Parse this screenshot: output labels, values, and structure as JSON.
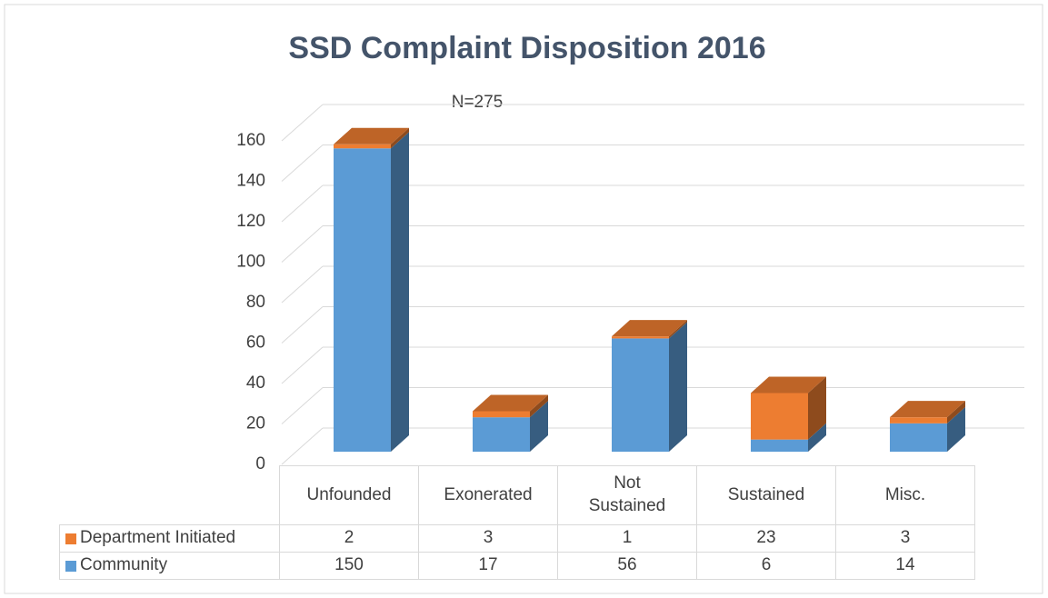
{
  "chart_data": {
    "type": "bar",
    "stacked": true,
    "title": "SSD Complaint Disposition 2016",
    "annotation": "N=275",
    "categories": [
      "Unfounded",
      "Exonerated",
      "Not Sustained",
      "Sustained",
      "Misc."
    ],
    "series": [
      {
        "name": "Department Initiated",
        "color": "#ED7D31",
        "values": [
          2,
          3,
          1,
          23,
          3
        ]
      },
      {
        "name": "Community",
        "color": "#5B9BD5",
        "values": [
          150,
          17,
          56,
          6,
          14
        ]
      }
    ],
    "ylim": [
      0,
      160
    ],
    "yticks": [
      0,
      20,
      40,
      60,
      80,
      100,
      120,
      140,
      160
    ],
    "grid": true
  }
}
